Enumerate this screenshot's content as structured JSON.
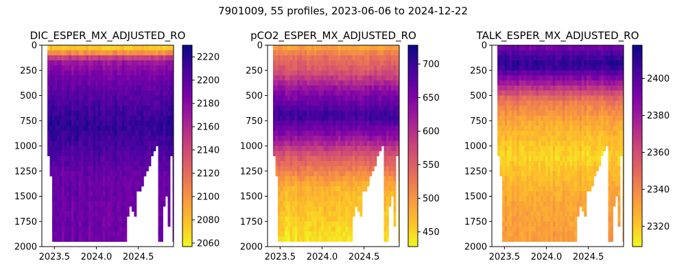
{
  "figure": {
    "suptitle": "7901009, 55 profiles, 2023-06-06 to 2024-12-22"
  },
  "chart_data": [
    {
      "type": "heatmap",
      "title": "DIC_ESPER_MX_ADJUSTED_RO",
      "xlabel": "",
      "ylabel": "",
      "xlim": [
        2023.35,
        2024.92
      ],
      "ylim": [
        2000,
        0
      ],
      "x_ticks": [
        "2023.5",
        "2024.0",
        "2024.5"
      ],
      "y_ticks": [
        "0",
        "250",
        "500",
        "750",
        "1000",
        "1250",
        "1500",
        "1750",
        "2000"
      ],
      "colormap": "plasma_r",
      "colorbar": {
        "range": [
          2057,
          2230
        ],
        "ticks": [
          "2060",
          "2080",
          "2100",
          "2120",
          "2140",
          "2160",
          "2180",
          "2200",
          "2220"
        ]
      },
      "profile_depth_structure": [
        {
          "depth": 0,
          "value": 2065
        },
        {
          "depth": 60,
          "value": 2090
        },
        {
          "depth": 150,
          "value": 2170
        },
        {
          "depth": 300,
          "value": 2190
        },
        {
          "depth": 550,
          "value": 2205
        },
        {
          "depth": 800,
          "value": 2218
        },
        {
          "depth": 1000,
          "value": 2208
        },
        {
          "depth": 1300,
          "value": 2195
        },
        {
          "depth": 2000,
          "value": 2192
        }
      ]
    },
    {
      "type": "heatmap",
      "title": "pCO2_ESPER_MX_ADJUSTED_RO",
      "xlabel": "",
      "ylabel": "",
      "xlim": [
        2023.35,
        2024.92
      ],
      "ylim": [
        2000,
        0
      ],
      "x_ticks": [
        "2023.5",
        "2024.0",
        "2024.5"
      ],
      "y_ticks": [
        "0",
        "250",
        "500",
        "750",
        "1000",
        "1250",
        "1500",
        "1750",
        "2000"
      ],
      "colormap": "plasma_r",
      "colorbar": {
        "range": [
          428,
          728
        ],
        "ticks": [
          "450",
          "500",
          "550",
          "600",
          "650",
          "700"
        ]
      },
      "profile_depth_structure": [
        {
          "depth": 0,
          "value": 480
        },
        {
          "depth": 100,
          "value": 530
        },
        {
          "depth": 250,
          "value": 560
        },
        {
          "depth": 450,
          "value": 640
        },
        {
          "depth": 700,
          "value": 700
        },
        {
          "depth": 900,
          "value": 640
        },
        {
          "depth": 1100,
          "value": 560
        },
        {
          "depth": 1400,
          "value": 480
        },
        {
          "depth": 2000,
          "value": 440
        }
      ]
    },
    {
      "type": "heatmap",
      "title": "TALK_ESPER_MX_ADJUSTED_RO",
      "xlabel": "",
      "ylabel": "",
      "xlim": [
        2023.35,
        2024.92
      ],
      "ylim": [
        2000,
        0
      ],
      "x_ticks": [
        "2023.5",
        "2024.0",
        "2024.5"
      ],
      "y_ticks": [
        "0",
        "250",
        "500",
        "750",
        "1000",
        "1250",
        "1500",
        "1750",
        "2000"
      ],
      "colormap": "plasma_r",
      "colorbar": {
        "range": [
          2309,
          2418
        ],
        "ticks": [
          "2320",
          "2340",
          "2360",
          "2380",
          "2400"
        ]
      },
      "profile_depth_structure": [
        {
          "depth": 0,
          "value": 2390
        },
        {
          "depth": 100,
          "value": 2405
        },
        {
          "depth": 200,
          "value": 2412
        },
        {
          "depth": 350,
          "value": 2385
        },
        {
          "depth": 550,
          "value": 2345
        },
        {
          "depth": 800,
          "value": 2328
        },
        {
          "depth": 1100,
          "value": 2318
        },
        {
          "depth": 1500,
          "value": 2330
        },
        {
          "depth": 2000,
          "value": 2335
        }
      ]
    }
  ],
  "profiles": {
    "count": 55,
    "time_start": 2023.43,
    "time_end": 2024.98,
    "max_depth": [
      1100,
      1300,
      1950,
      1950,
      1950,
      1950,
      1950,
      1950,
      1950,
      1950,
      1950,
      1950,
      1950,
      1950,
      1950,
      1950,
      1950,
      1950,
      1950,
      1950,
      1950,
      1950,
      1950,
      1950,
      1950,
      1950,
      1950,
      1950,
      1950,
      1950,
      1950,
      1950,
      1950,
      1700,
      1600,
      1650,
      1700,
      1450,
      1450,
      1400,
      1300,
      1250,
      1200,
      1100,
      1050,
      1000,
      1950,
      1950,
      1600,
      1500,
      1800,
      1100,
      1950,
      1950,
      1950
    ]
  }
}
